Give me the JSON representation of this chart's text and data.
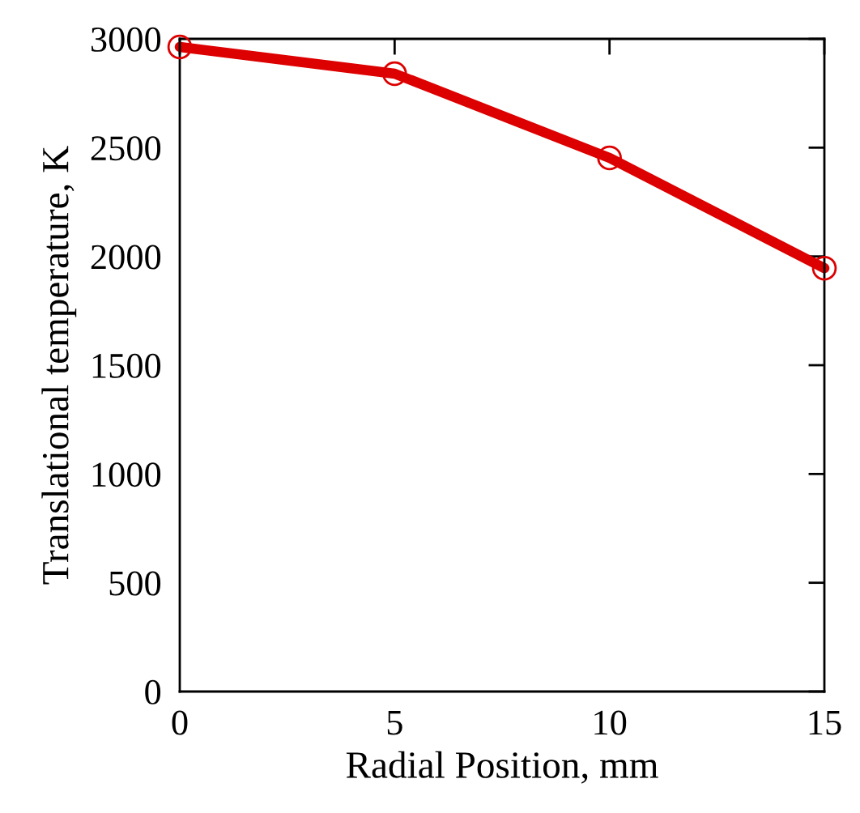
{
  "chart_data": {
    "type": "line",
    "xlabel": "Radial Position, mm",
    "ylabel": "Translational temperature, K",
    "x": [
      0,
      5,
      10,
      15
    ],
    "series": [
      {
        "color": "#dd0000",
        "values": [
          2963,
          2840,
          2453,
          1946
        ]
      }
    ],
    "marker": "circle",
    "line_style": "solid",
    "grid": false,
    "xlim": [
      0,
      15
    ],
    "xticks": [
      0,
      5,
      10,
      15
    ],
    "ylim": [
      0,
      3000
    ],
    "yticks": [
      0,
      500,
      1000,
      1500,
      2000,
      2500,
      3000
    ]
  }
}
